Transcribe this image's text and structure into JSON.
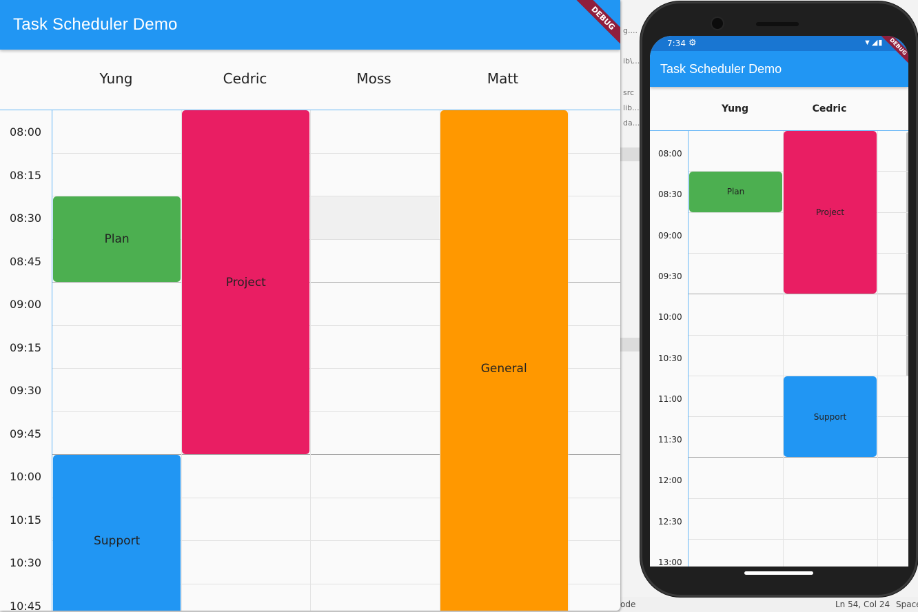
{
  "ide": {
    "snippets": [
      "g....",
      "ib\\...",
      "src",
      "lib...",
      "da..."
    ],
    "status": {
      "position": "Ln 54, Col 24",
      "indent": "Space",
      "mode": "ode"
    }
  },
  "desktop": {
    "title": "Task Scheduler Demo",
    "debug_banner": "DEBUG",
    "resources": [
      "Yung",
      "Cedric",
      "Moss",
      "Matt"
    ],
    "time_labels": [
      "08:00",
      "08:15",
      "08:30",
      "08:45",
      "09:00",
      "09:15",
      "09:30",
      "09:45",
      "10:00",
      "10:15",
      "10:30",
      "10:45"
    ],
    "tasks": [
      {
        "label": "Plan",
        "resource": 0,
        "start": "08:30",
        "end": "09:00",
        "color": "#4CAF50"
      },
      {
        "label": "Project",
        "resource": 1,
        "start": "08:00",
        "end": "10:00",
        "color": "#E91E63"
      },
      {
        "label": "General",
        "resource": 3,
        "start": "08:00",
        "end": "11:00",
        "color": "#FF9800"
      },
      {
        "label": "Support",
        "resource": 0,
        "start": "10:00",
        "end": "11:00",
        "color": "#2196F3"
      }
    ]
  },
  "phone": {
    "status_time": "7:34",
    "title": "Task Scheduler Demo",
    "debug_banner": "DEBUG",
    "resources": [
      "Yung",
      "Cedric"
    ],
    "time_labels": [
      "08:00",
      "08:30",
      "09:00",
      "09:30",
      "10:00",
      "10:30",
      "11:00",
      "11:30",
      "12:00",
      "12:30",
      "13:00"
    ],
    "tasks": [
      {
        "label": "Plan",
        "resource": 0,
        "start": "08:30",
        "end": "09:00",
        "color": "#4CAF50"
      },
      {
        "label": "Project",
        "resource": 1,
        "start": "08:00",
        "end": "10:00",
        "color": "#E91E63"
      },
      {
        "label": "Support",
        "resource": 1,
        "start": "11:00",
        "end": "12:00",
        "color": "#2196F3"
      }
    ]
  }
}
